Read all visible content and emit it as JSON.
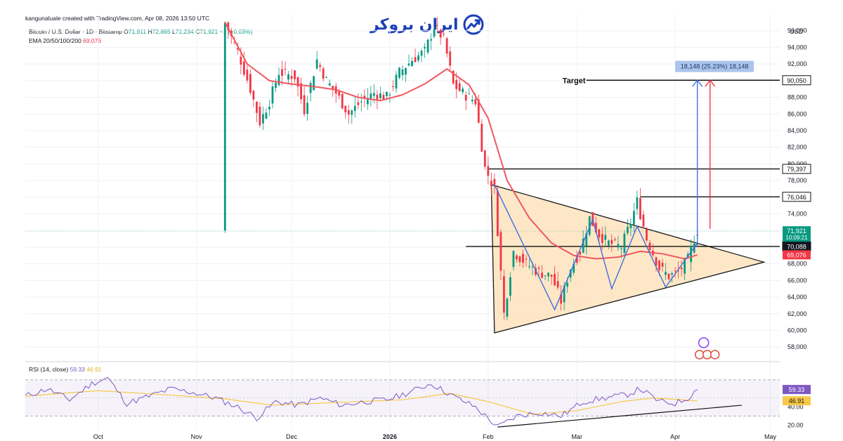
{
  "header": {
    "attribution": "kangunaluale created with TradingView.com, Apr 08, 2026 13:50 UTC",
    "symbol": "Bitcoin / U.S. Dollar · 1D · Bitstamp",
    "o_label": "O",
    "o_value": "71,911",
    "h_label": "H",
    "h_value": "72,865",
    "l_label": "L",
    "l_value": "71,234",
    "c_label": "C",
    "c_value": "71,921",
    "change": "−1 (−0.03%)",
    "ema_label": "EMA 20/50/100/200",
    "ema_value": "69,076",
    "rsi_label": "RSI (14, close)",
    "rsi_value": "59.33",
    "rsi_ma_value": "46.91"
  },
  "logo": {
    "text": "ایران بروکر",
    "icon": "growth-chart-icon",
    "color": "#1a3fb8"
  },
  "colors": {
    "up": "#089981",
    "down": "#f23645",
    "ema": "#f0575f",
    "triangle_fill": "#fde3bd",
    "zigzag": "#3f6fe0",
    "rsi": "#7e57c2",
    "rsi_ma": "#f7c948",
    "price_badge": "#089981"
  },
  "chart_data": {
    "type": "candlestick",
    "currency": "USD",
    "y_axis": {
      "label": "USD",
      "range": [
        56500,
        98000
      ],
      "ticks": [
        "58,000",
        "60,000",
        "62,000",
        "64,000",
        "66,000",
        "68,000",
        "70,000",
        "72,000",
        "74,000",
        "76,000",
        "78,000",
        "80,000",
        "82,000",
        "84,000",
        "86,000",
        "88,000",
        "90,000",
        "92,000",
        "94,000",
        "96,000"
      ]
    },
    "x_axis": {
      "range": [
        "2025-09-08",
        "2026-05-04"
      ],
      "ticks": [
        {
          "label": "Oct",
          "date": "2025-10-01"
        },
        {
          "label": "Nov",
          "date": "2025-11-01"
        },
        {
          "label": "Dec",
          "date": "2025-12-01"
        },
        {
          "label": "2026",
          "date": "2026-01-01"
        },
        {
          "label": "Feb",
          "date": "2026-02-01"
        },
        {
          "label": "Mar",
          "date": "2026-03-01"
        },
        {
          "label": "Apr",
          "date": "2026-04-01"
        },
        {
          "label": "May",
          "date": "2026-05-01"
        }
      ]
    },
    "price_path": [
      [
        "2025-11-10",
        97000
      ],
      [
        "2025-11-14",
        93500
      ],
      [
        "2025-11-18",
        89000
      ],
      [
        "2025-11-21",
        85000
      ],
      [
        "2025-11-24",
        87500
      ],
      [
        "2025-11-27",
        91000
      ],
      [
        "2025-12-02",
        90500
      ],
      [
        "2025-12-05",
        86500
      ],
      [
        "2025-12-09",
        92500
      ],
      [
        "2025-12-12",
        90000
      ],
      [
        "2025-12-15",
        88500
      ],
      [
        "2025-12-19",
        86000
      ],
      [
        "2025-12-23",
        87500
      ],
      [
        "2025-12-27",
        88500
      ],
      [
        "2025-12-31",
        88000
      ],
      [
        "2026-01-04",
        91000
      ],
      [
        "2026-01-08",
        92500
      ],
      [
        "2026-01-12",
        93500
      ],
      [
        "2026-01-15",
        96500
      ],
      [
        "2026-01-18",
        95000
      ],
      [
        "2026-01-21",
        89500
      ],
      [
        "2026-01-24",
        88500
      ],
      [
        "2026-01-28",
        87500
      ],
      [
        "2026-01-31",
        79500
      ],
      [
        "2026-02-03",
        77000
      ],
      [
        "2026-02-06",
        62000
      ],
      [
        "2026-02-09",
        69500
      ],
      [
        "2026-02-13",
        68000
      ],
      [
        "2026-02-17",
        67000
      ],
      [
        "2026-02-21",
        66500
      ],
      [
        "2026-02-24",
        63500
      ],
      [
        "2026-02-27",
        67500
      ],
      [
        "2026-03-02",
        69500
      ],
      [
        "2026-03-05",
        73500
      ],
      [
        "2026-03-08",
        71500
      ],
      [
        "2026-03-11",
        70500
      ],
      [
        "2026-03-15",
        70000
      ],
      [
        "2026-03-18",
        73000
      ],
      [
        "2026-03-20",
        75500
      ],
      [
        "2026-03-23",
        71000
      ],
      [
        "2026-03-27",
        67500
      ],
      [
        "2026-03-30",
        66500
      ],
      [
        "2026-04-02",
        67000
      ],
      [
        "2026-04-05",
        68500
      ],
      [
        "2026-04-07",
        71000
      ],
      [
        "2026-04-08",
        71921
      ]
    ],
    "ema": [
      [
        "2025-11-10",
        97000
      ],
      [
        "2025-11-17",
        92000
      ],
      [
        "2025-11-24",
        90000
      ],
      [
        "2025-12-01",
        89600
      ],
      [
        "2025-12-08",
        89300
      ],
      [
        "2025-12-15",
        88900
      ],
      [
        "2025-12-22",
        88000
      ],
      [
        "2025-12-29",
        87600
      ],
      [
        "2026-01-05",
        88300
      ],
      [
        "2026-01-12",
        89600
      ],
      [
        "2026-01-19",
        91400
      ],
      [
        "2026-01-26",
        89500
      ],
      [
        "2026-02-01",
        85500
      ],
      [
        "2026-02-07",
        78000
      ],
      [
        "2026-02-14",
        73500
      ],
      [
        "2026-02-21",
        70500
      ],
      [
        "2026-02-28",
        69000
      ],
      [
        "2026-03-07",
        68600
      ],
      [
        "2026-03-14",
        68800
      ],
      [
        "2026-03-21",
        69500
      ],
      [
        "2026-03-28",
        69200
      ],
      [
        "2026-04-04",
        68600
      ],
      [
        "2026-04-08",
        69076
      ]
    ],
    "triangle": [
      [
        "2026-02-02",
        77500
      ],
      [
        "2026-02-03",
        59700
      ],
      [
        "2026-04-29",
        68200
      ]
    ],
    "zigzag": [
      [
        "2026-02-03",
        77500
      ],
      [
        "2026-02-22",
        62500
      ],
      [
        "2026-03-06",
        73300
      ],
      [
        "2026-03-12",
        65000
      ],
      [
        "2026-03-20",
        72500
      ],
      [
        "2026-03-29",
        65200
      ],
      [
        "2026-04-08",
        70500
      ]
    ],
    "horizontal_levels": [
      {
        "price": 90050,
        "label": "90,050",
        "name": "Target",
        "from": "2026-03-04"
      },
      {
        "price": 79397,
        "label": "79,397",
        "from": "2026-02-01"
      },
      {
        "price": 76046,
        "label": "76,046",
        "from": "2026-03-21"
      },
      {
        "price": 70088,
        "label": "70,088",
        "from": "2026-01-25"
      }
    ],
    "target_label": "Target",
    "measure_box": "18,148 (25.23%) 18,148",
    "arrows": [
      {
        "date": "2026-04-08",
        "from": 70000,
        "to": 90050,
        "color": "#3f6fe0"
      },
      {
        "date": "2026-04-12",
        "from": 72200,
        "to": 90050,
        "color": "#f23645"
      }
    ],
    "price_badges": [
      {
        "label": "71,921",
        "sub": "10:09:21",
        "price": 71921,
        "color": "#089981"
      },
      {
        "label": "70,088",
        "price": 70088,
        "color": "#131722"
      },
      {
        "label": "69,076",
        "price": 69076,
        "color": "#f23645"
      }
    ],
    "rsi": {
      "range": [
        15,
        90
      ],
      "ticks": [
        "20.00",
        "40.00"
      ],
      "overbought": 70,
      "oversold": 30,
      "current": 59.33,
      "ma_current": 46.91,
      "badges": [
        {
          "label": "59.33",
          "value": 59.33,
          "color": "#7e57c2"
        },
        {
          "label": "46.91",
          "value": 46.91,
          "color": "#f7c948"
        }
      ],
      "trendline": [
        [
          "2026-02-04",
          18
        ],
        [
          "2026-04-22",
          42
        ]
      ],
      "path": [
        [
          "2025-09-08",
          52
        ],
        [
          "2025-09-15",
          60
        ],
        [
          "2025-09-22",
          48
        ],
        [
          "2025-09-29",
          66
        ],
        [
          "2025-10-04",
          72
        ],
        [
          "2025-10-10",
          44
        ],
        [
          "2025-10-17",
          52
        ],
        [
          "2025-10-24",
          60
        ],
        [
          "2025-10-31",
          56
        ],
        [
          "2025-11-07",
          50
        ],
        [
          "2025-11-14",
          40
        ],
        [
          "2025-11-20",
          28
        ],
        [
          "2025-11-26",
          46
        ],
        [
          "2025-12-03",
          42
        ],
        [
          "2025-12-10",
          50
        ],
        [
          "2025-12-17",
          42
        ],
        [
          "2025-12-24",
          46
        ],
        [
          "2025-12-31",
          48
        ],
        [
          "2026-01-07",
          56
        ],
        [
          "2026-01-14",
          66
        ],
        [
          "2026-01-21",
          52
        ],
        [
          "2026-01-28",
          40
        ],
        [
          "2026-02-04",
          18
        ],
        [
          "2026-02-10",
          30
        ],
        [
          "2026-02-17",
          34
        ],
        [
          "2026-02-24",
          30
        ],
        [
          "2026-03-03",
          46
        ],
        [
          "2026-03-10",
          50
        ],
        [
          "2026-03-17",
          54
        ],
        [
          "2026-03-21",
          60
        ],
        [
          "2026-03-27",
          46
        ],
        [
          "2026-04-01",
          44
        ],
        [
          "2026-04-05",
          50
        ],
        [
          "2026-04-08",
          59.33
        ]
      ],
      "ma_path": [
        [
          "2025-09-08",
          52
        ],
        [
          "2025-10-01",
          58
        ],
        [
          "2025-10-20",
          54
        ],
        [
          "2025-11-10",
          49
        ],
        [
          "2025-11-25",
          42
        ],
        [
          "2025-12-15",
          45
        ],
        [
          "2026-01-05",
          48
        ],
        [
          "2026-01-20",
          55
        ],
        [
          "2026-02-01",
          46
        ],
        [
          "2026-02-15",
          32
        ],
        [
          "2026-03-01",
          36
        ],
        [
          "2026-03-15",
          46
        ],
        [
          "2026-03-25",
          50
        ],
        [
          "2026-04-08",
          46.91
        ]
      ]
    }
  }
}
